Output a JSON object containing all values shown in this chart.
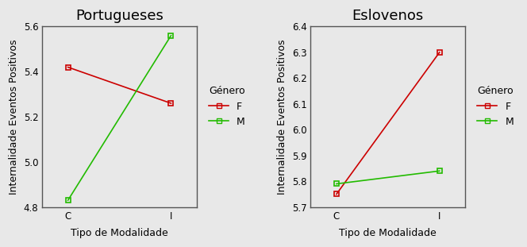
{
  "left_title": "Portugueses",
  "right_title": "Eslovenos",
  "xlabel": "Tipo de Modalidade",
  "ylabel": "Internalidade Eventos Positivos",
  "xtick_labels": [
    "C",
    "I"
  ],
  "left": {
    "F": [
      5.42,
      5.26
    ],
    "M": [
      4.83,
      5.56
    ]
  },
  "right": {
    "F": [
      5.75,
      6.3
    ],
    "M": [
      5.79,
      5.84
    ]
  },
  "left_ylim": [
    4.8,
    5.6
  ],
  "left_yticks": [
    4.8,
    5.0,
    5.2,
    5.4,
    5.6
  ],
  "right_ylim": [
    5.7,
    6.4
  ],
  "right_yticks": [
    5.7,
    5.8,
    5.9,
    6.0,
    6.1,
    6.2,
    6.3,
    6.4
  ],
  "color_F": "#cc0000",
  "color_M": "#22bb00",
  "legend_title": "Género",
  "legend_labels": [
    "F",
    "M"
  ],
  "marker": "s",
  "marker_size": 5,
  "title_fontsize": 13,
  "label_fontsize": 9,
  "tick_fontsize": 8.5,
  "legend_fontsize": 9,
  "bg_color": "#e8e8e8"
}
